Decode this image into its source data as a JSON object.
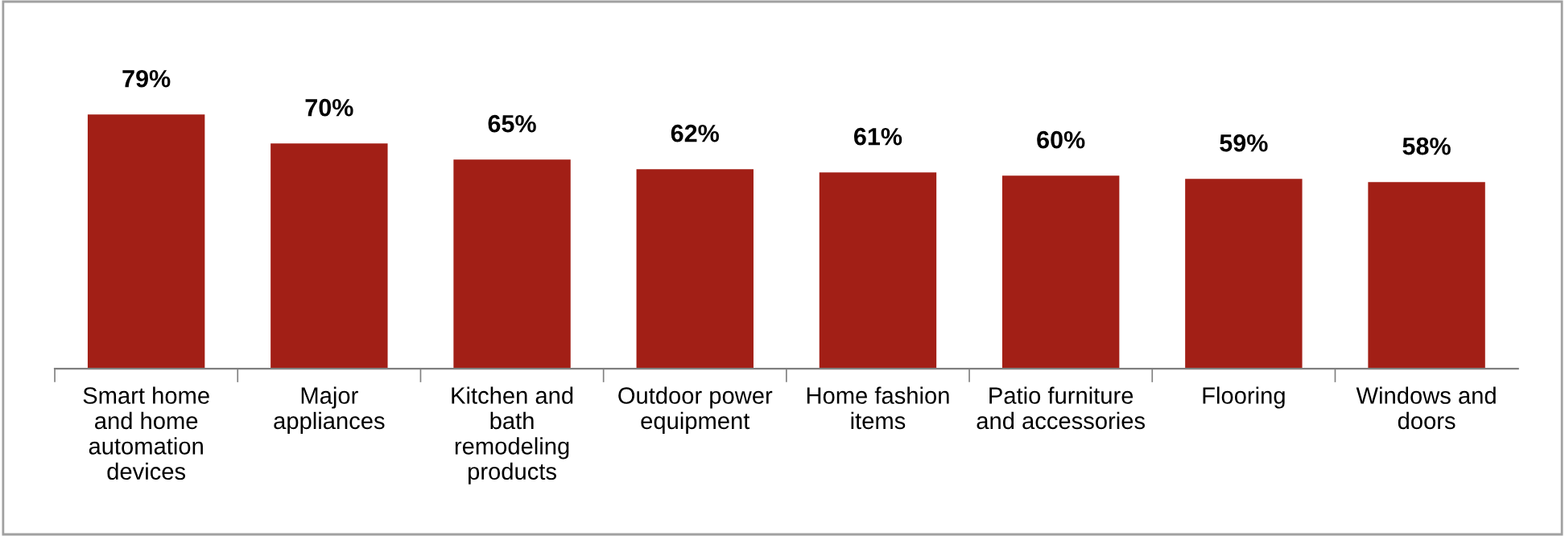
{
  "chart_data": {
    "type": "bar",
    "categories": [
      "Smart home\nand home\nautomation\ndevices",
      "Major\nappliances",
      "Kitchen and\nbath\nremodeling\nproducts",
      "Outdoor power\nequipment",
      "Home fashion\nitems",
      "Patio furniture\nand accessories",
      "Flooring",
      "Windows and\ndoors"
    ],
    "values": [
      79,
      70,
      65,
      62,
      61,
      60,
      59,
      58
    ],
    "value_labels": [
      "79%",
      "70%",
      "65%",
      "62%",
      "61%",
      "60%",
      "59%",
      "58%"
    ],
    "color": "#a21f16",
    "tick_labels": "x",
    "grid": false,
    "legend": false
  }
}
